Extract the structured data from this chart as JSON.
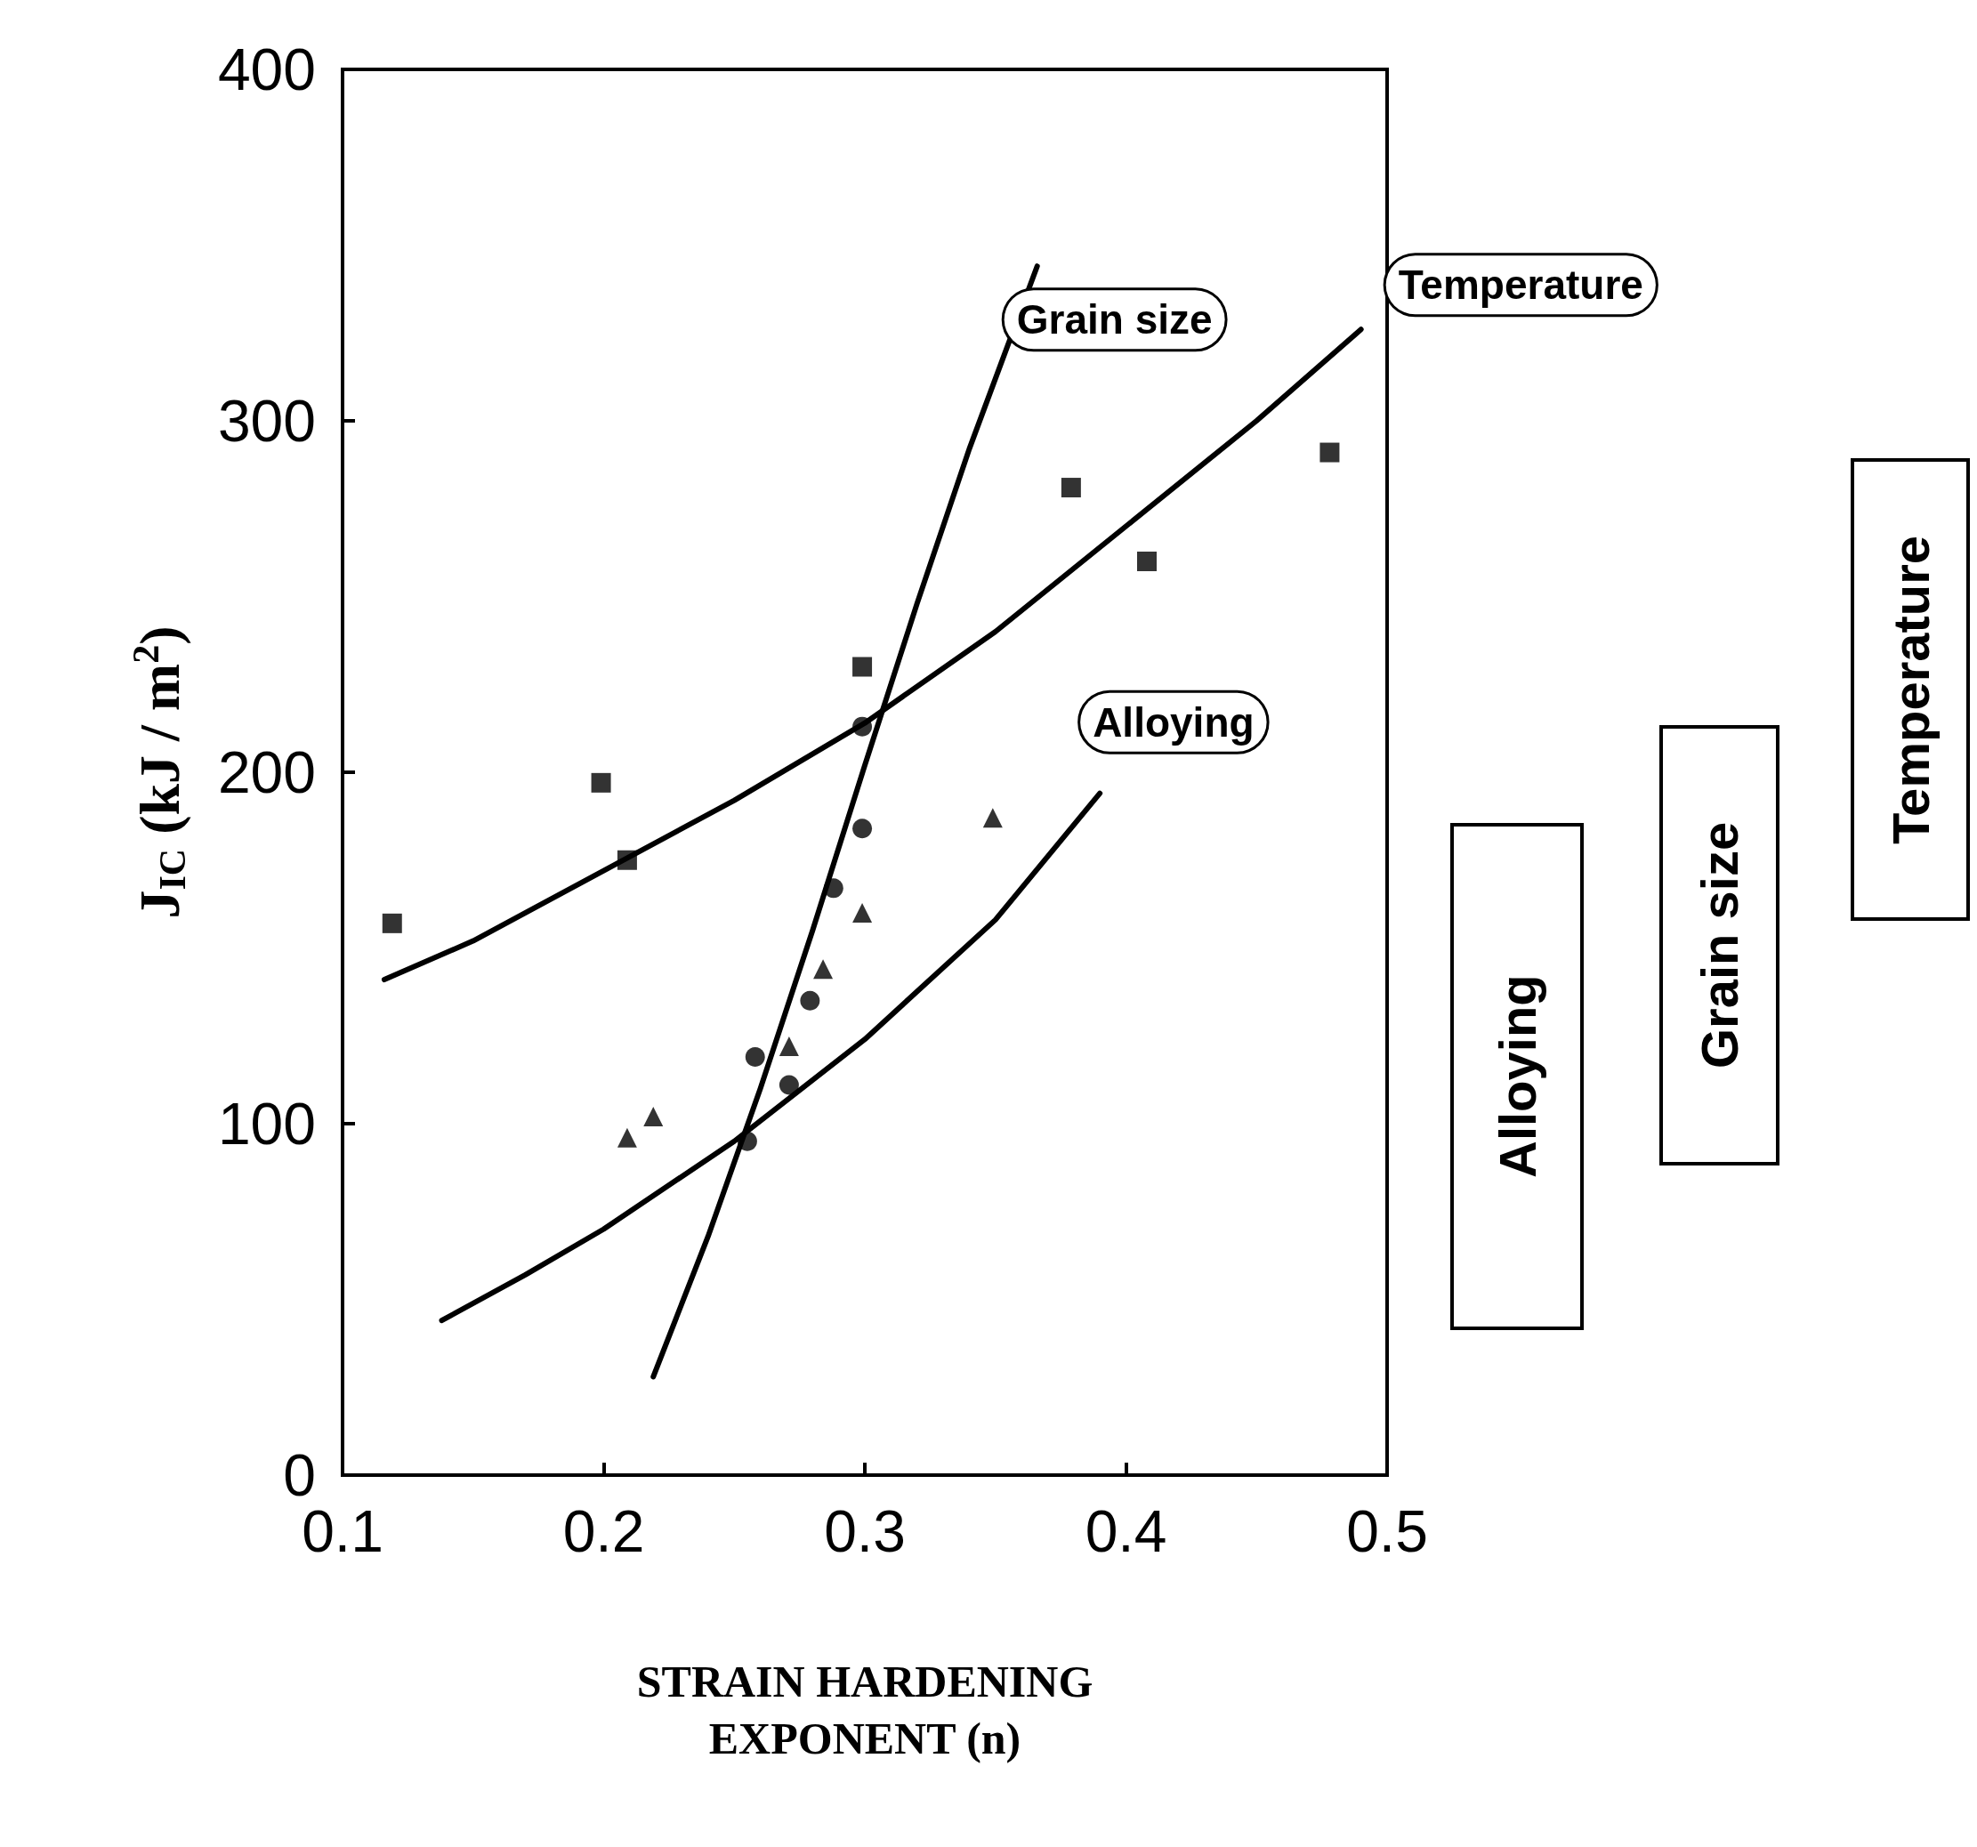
{
  "chart_data": {
    "type": "scatter",
    "xlabel": "STRAIN HARDENING\nEXPONENT (n)",
    "ylabel": "J$_{IC}$ (kJ / m$^{2}$)",
    "xlim": [
      0.1,
      0.5
    ],
    "xticks": [
      0.1,
      0.2,
      0.3,
      0.4,
      0.5
    ],
    "ylim": [
      0,
      400
    ],
    "yticks": [
      0,
      100,
      200,
      300,
      400
    ],
    "grid": false,
    "legend": false,
    "annotations": [
      "Alloying",
      "Grain size",
      "Temperature"
    ],
    "series": [
      {
        "marker": "square",
        "color": "#000000",
        "x": [
          0.119,
          0.199,
          0.209,
          0.299,
          0.379,
          0.408,
          0.478
        ],
        "values": [
          157,
          197,
          175,
          230,
          281,
          260,
          291
        ]
      },
      {
        "marker": "circle",
        "color": "#000000",
        "x": [
          0.255,
          0.258,
          0.271,
          0.279,
          0.288,
          0.299,
          0.299
        ],
        "values": [
          95,
          119,
          111,
          135,
          167,
          184,
          213
        ]
      },
      {
        "marker": "triangle",
        "color": "#000000",
        "x": [
          0.209,
          0.219,
          0.271,
          0.284,
          0.299,
          0.349
        ],
        "values": [
          96,
          102,
          122,
          144,
          160,
          187
        ]
      },
      {
        "type": "line",
        "name": "Temperature",
        "marker": "none",
        "color": "#000000",
        "x": [
          0.116,
          0.15,
          0.2,
          0.25,
          0.3,
          0.35,
          0.4,
          0.45,
          0.49
        ],
        "values": [
          141,
          152,
          172,
          192,
          214,
          240,
          270,
          300,
          326
        ]
      },
      {
        "type": "line",
        "name": "Grain size",
        "marker": "none",
        "color": "#000000",
        "x": [
          0.219,
          0.24,
          0.26,
          0.28,
          0.3,
          0.32,
          0.34,
          0.366
        ],
        "values": [
          28,
          68,
          110,
          155,
          202,
          248,
          292,
          344
        ]
      },
      {
        "type": "line",
        "name": "Alloying",
        "marker": "none",
        "color": "#000000",
        "x": [
          0.138,
          0.17,
          0.2,
          0.25,
          0.3,
          0.35,
          0.39
        ],
        "values": [
          44,
          57,
          70,
          95,
          124,
          158,
          194
        ]
      }
    ]
  }
}
